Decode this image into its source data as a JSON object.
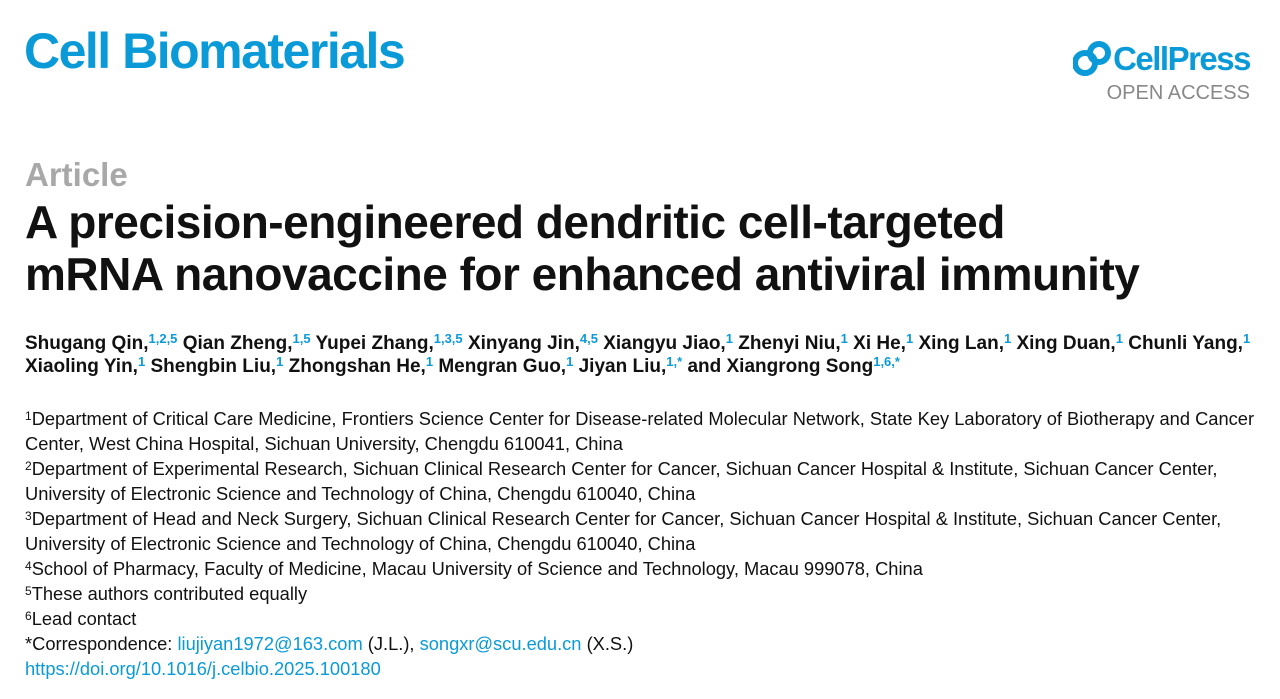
{
  "header": {
    "journal": "Cell Biomaterials",
    "publisher": "CellPress",
    "access": "OPEN ACCESS"
  },
  "article": {
    "type": "Article",
    "title": "A precision-engineered dendritic cell-targeted mRNA nanovaccine for enhanced antiviral immunity"
  },
  "authors": [
    {
      "name": "Shugang Qin,",
      "sup": "1,2,5"
    },
    {
      "name": "Qian Zheng,",
      "sup": "1,5"
    },
    {
      "name": "Yupei Zhang,",
      "sup": "1,3,5"
    },
    {
      "name": "Xinyang Jin,",
      "sup": "4,5"
    },
    {
      "name": "Xiangyu Jiao,",
      "sup": "1"
    },
    {
      "name": "Zhenyi Niu,",
      "sup": "1"
    },
    {
      "name": "Xi He,",
      "sup": "1"
    },
    {
      "name": "Xing Lan,",
      "sup": "1"
    },
    {
      "name": "Xing Duan,",
      "sup": "1"
    },
    {
      "name": "Chunli Yang,",
      "sup": "1"
    },
    {
      "name": "Xiaoling Yin,",
      "sup": "1"
    },
    {
      "name": "Shengbin Liu,",
      "sup": "1"
    },
    {
      "name": "Zhongshan He,",
      "sup": "1"
    },
    {
      "name": "Mengran Guo,",
      "sup": "1"
    },
    {
      "name": "Jiyan Liu,",
      "sup": "1,*"
    },
    {
      "name": "and Xiangrong Song",
      "sup": "1,6,*"
    }
  ],
  "affiliations": [
    {
      "marker": "1",
      "text": "Department of Critical Care Medicine, Frontiers Science Center for Disease-related Molecular Network, State Key Laboratory of Biotherapy and Cancer Center, West China Hospital, Sichuan University, Chengdu 610041, China"
    },
    {
      "marker": "2",
      "text": "Department of Experimental Research, Sichuan Clinical Research Center for Cancer, Sichuan Cancer Hospital & Institute, Sichuan Cancer Center, University of Electronic Science and Technology of China, Chengdu 610040, China"
    },
    {
      "marker": "3",
      "text": "Department of Head and Neck Surgery, Sichuan Clinical Research Center for Cancer, Sichuan Cancer Hospital & Institute, Sichuan Cancer Center, University of Electronic Science and Technology of China, Chengdu 610040, China"
    },
    {
      "marker": "4",
      "text": "School of Pharmacy, Faculty of Medicine, Macau University of Science and Technology, Macau 999078, China"
    },
    {
      "marker": "5",
      "text": "These authors contributed equally"
    },
    {
      "marker": "6",
      "text": "Lead contact"
    }
  ],
  "correspondence": {
    "label": "*Correspondence:",
    "contacts": [
      {
        "email": "liujiyan1972@163.com",
        "initials": "(J.L.),"
      },
      {
        "email": "songxr@scu.edu.cn",
        "initials": "(X.S.)"
      }
    ]
  },
  "doi": "https://doi.org/10.1016/j.celbio.2025.100180"
}
